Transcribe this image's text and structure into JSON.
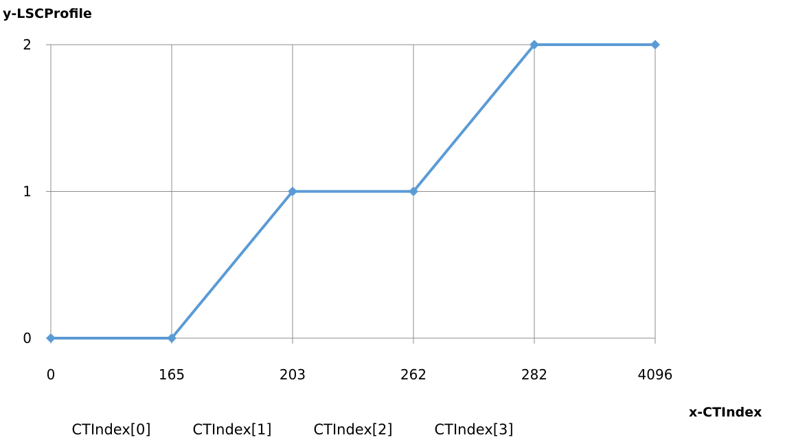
{
  "chart_data": {
    "type": "line",
    "title": "",
    "xlabel": "x-CTIndex",
    "ylabel": "y-LSCProfile",
    "categories": [
      "0",
      "165",
      "203",
      "262",
      "282",
      "4096"
    ],
    "series": [
      {
        "values": [
          0,
          0,
          1,
          1,
          2,
          2
        ]
      }
    ],
    "ylim": [
      0,
      2
    ],
    "yticks": [
      "0",
      "1",
      "2"
    ],
    "grid": true,
    "legend": "none",
    "annotations": [
      "CTIndex[0]",
      "CTIndex[1]",
      "CTIndex[2]",
      "CTIndex[3]"
    ],
    "line_color": "#5b9bd5",
    "marker": "diamond"
  }
}
